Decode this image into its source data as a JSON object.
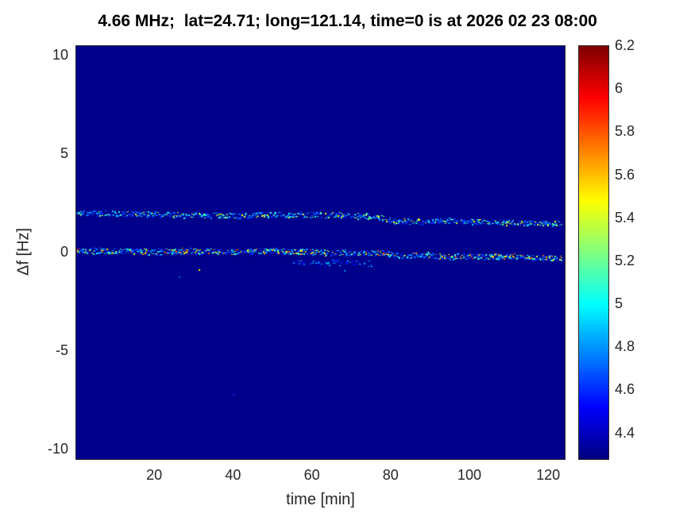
{
  "chart_data": {
    "type": "heatmap",
    "title": "4.66 MHz;  lat=24.71; long=121.14, time=0 is at 2026 02 23 08:00",
    "xlabel": "time [min]",
    "ylabel": "Δf [Hz]",
    "xlim": [
      0,
      124
    ],
    "ylim": [
      -10.5,
      10.5
    ],
    "xticks": [
      20,
      40,
      60,
      80,
      100,
      120
    ],
    "yticks": [
      10,
      5,
      0,
      -5,
      -10
    ],
    "grid": false,
    "legend": "none",
    "colormap": "jet",
    "background_value": 4.3,
    "colorbar": {
      "min": 4.28,
      "max": 6.2,
      "ticks": [
        6.2,
        6,
        5.8,
        5.6,
        5.4,
        5.2,
        5,
        4.8,
        4.6,
        4.4
      ],
      "tick_labels": [
        "6.2",
        "6",
        "5.8",
        "5.6",
        "5.4",
        "5.2",
        "5",
        "4.8",
        "4.6",
        "4.4"
      ],
      "position": "right"
    },
    "traces": [
      {
        "name": "upper-doppler-ridge",
        "points": [
          [
            0,
            2.05
          ],
          [
            10,
            2.0
          ],
          [
            20,
            1.95
          ],
          [
            30,
            1.9
          ],
          [
            40,
            1.9
          ],
          [
            50,
            1.95
          ],
          [
            60,
            1.95
          ],
          [
            70,
            1.9
          ],
          [
            76,
            1.85
          ],
          [
            80,
            1.65
          ],
          [
            85,
            1.6
          ],
          [
            90,
            1.6
          ],
          [
            95,
            1.65
          ],
          [
            100,
            1.6
          ],
          [
            105,
            1.55
          ],
          [
            110,
            1.55
          ],
          [
            115,
            1.5
          ],
          [
            123,
            1.5
          ]
        ],
        "intensity_range": [
          4.6,
          5.5
        ],
        "density": 0.9,
        "gap": 0.18
      },
      {
        "name": "carrier-zero-ridge",
        "points": [
          [
            0,
            0.1
          ],
          [
            10,
            0.1
          ],
          [
            20,
            0.05
          ],
          [
            30,
            0.1
          ],
          [
            40,
            0.05
          ],
          [
            50,
            0.1
          ],
          [
            60,
            0.05
          ],
          [
            70,
            0.0
          ],
          [
            78,
            0.0
          ],
          [
            82,
            -0.15
          ],
          [
            88,
            -0.1
          ],
          [
            95,
            -0.2
          ],
          [
            100,
            -0.15
          ],
          [
            105,
            -0.2
          ],
          [
            110,
            -0.15
          ],
          [
            115,
            -0.25
          ],
          [
            123,
            -0.25
          ]
        ],
        "intensity_range": [
          4.6,
          5.9
        ],
        "density": 1.1,
        "gap": 0.1
      },
      {
        "name": "faint-lower-branch",
        "points": [
          [
            55,
            -0.45
          ],
          [
            62,
            -0.5
          ],
          [
            68,
            -0.5
          ],
          [
            75,
            -0.55
          ]
        ],
        "intensity_range": [
          4.5,
          5.0
        ],
        "density": 0.5,
        "gap": 0.3
      }
    ],
    "speckles": [
      {
        "x": 31,
        "y": -0.85,
        "v": 5.5
      },
      {
        "x": 26,
        "y": -1.2,
        "v": 4.7
      },
      {
        "x": 40,
        "y": -7.2,
        "v": 4.6
      },
      {
        "x": 68,
        "y": -0.9,
        "v": 4.8
      }
    ]
  }
}
